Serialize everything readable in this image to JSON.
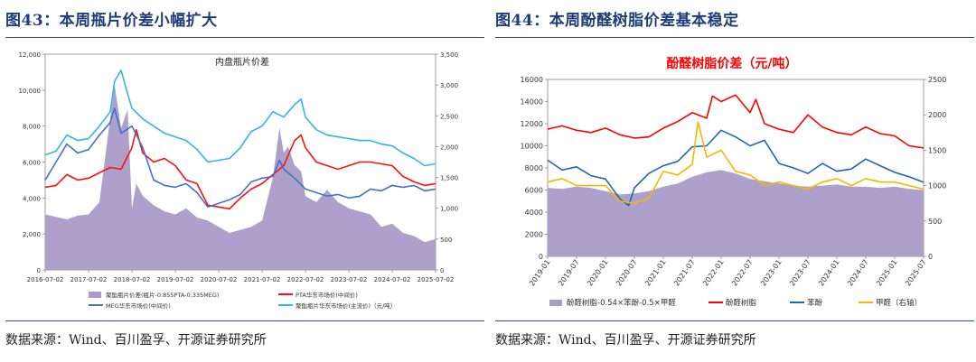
{
  "source_text": "数据来源：Wind、百川盈孚、开源证券研究所",
  "left": {
    "fig_title": "图43：本周瓶片价差小幅扩大",
    "colors": {
      "area": "#a99bc7",
      "pta": "#ff1010",
      "meg": "#4472c4",
      "bottle": "#33b5e5"
    },
    "chart_data": {
      "type": "line",
      "title": "内盘瓶片价差",
      "x_ticks": [
        "2016-07-02",
        "2017-07-02",
        "2018-07-02",
        "2019-07-02",
        "2020-07-02",
        "2021-07-02",
        "2022-07-02",
        "2023-07-02",
        "2024-07-02",
        "2025-07-02"
      ],
      "y_left_ticks": [
        "0",
        "2,000",
        "4,000",
        "6,000",
        "8,000",
        "10,000",
        "12,000"
      ],
      "y_left_range": [
        0,
        12000
      ],
      "y_right_ticks": [
        "0",
        "500",
        "1,000",
        "1,500",
        "2,000",
        "2,500",
        "3,000",
        "3,500"
      ],
      "y_right_range": [
        0,
        3500
      ],
      "legend": [
        "聚酯瓶片价差(瓶片-0.855PTA-0.335MEG)",
        "PTA华东市场价(中间价)",
        "MEG华东市场价(中间价)",
        "聚酯瓶片华东市场价(主流价)（元/吨）"
      ],
      "series": [
        {
          "name": "聚酯瓶片价差(瓶片-0.855PTA-0.335MEG)",
          "axis": "right",
          "kind": "area",
          "x": [
            2016.5,
            2016.75,
            2017.0,
            2017.25,
            2017.5,
            2017.75,
            2017.95,
            2018.1,
            2018.25,
            2018.4,
            2018.5,
            2018.6,
            2018.75,
            2019.0,
            2019.25,
            2019.5,
            2019.75,
            2020.0,
            2020.25,
            2020.5,
            2020.75,
            2021.0,
            2021.25,
            2021.5,
            2021.75,
            2021.9,
            2022.0,
            2022.1,
            2022.25,
            2022.4,
            2022.5,
            2022.75,
            2023.0,
            2023.25,
            2023.5,
            2023.75,
            2024.0,
            2024.25,
            2024.5,
            2024.75,
            2025.0,
            2025.25,
            2025.5
          ],
          "values": [
            900,
            860,
            820,
            880,
            900,
            1100,
            2200,
            3000,
            2300,
            2600,
            1000,
            1400,
            1200,
            1050,
            950,
            900,
            1000,
            850,
            800,
            700,
            600,
            650,
            700,
            800,
            1500,
            2300,
            1900,
            2000,
            1700,
            1600,
            1200,
            1100,
            1300,
            1100,
            1000,
            950,
            900,
            700,
            750,
            600,
            550,
            450,
            500
          ]
        },
        {
          "name": "PTA华东市场价(中间价)",
          "axis": "left",
          "kind": "line",
          "x": [
            2016.5,
            2016.75,
            2017.0,
            2017.25,
            2017.5,
            2017.75,
            2018.0,
            2018.25,
            2018.5,
            2018.6,
            2018.75,
            2019.0,
            2019.25,
            2019.5,
            2019.75,
            2020.0,
            2020.25,
            2020.5,
            2020.75,
            2021.0,
            2021.25,
            2021.5,
            2021.75,
            2022.0,
            2022.25,
            2022.4,
            2022.5,
            2022.75,
            2023.0,
            2023.25,
            2023.5,
            2023.75,
            2024.0,
            2024.25,
            2024.5,
            2024.75,
            2025.0,
            2025.25,
            2025.5
          ],
          "values": [
            4600,
            4700,
            5300,
            5000,
            5100,
            5400,
            5700,
            5600,
            6800,
            7800,
            6500,
            6000,
            6200,
            5800,
            5000,
            4800,
            3600,
            3500,
            3400,
            4000,
            4500,
            4800,
            5300,
            5800,
            7200,
            7500,
            6800,
            6000,
            5800,
            5600,
            5800,
            6000,
            6000,
            5900,
            5800,
            5200,
            4900,
            4700,
            4800
          ]
        },
        {
          "name": "MEG华东市场价(中间价)",
          "axis": "left",
          "kind": "line",
          "x": [
            2016.5,
            2016.75,
            2017.0,
            2017.25,
            2017.5,
            2017.75,
            2018.0,
            2018.1,
            2018.25,
            2018.5,
            2018.75,
            2019.0,
            2019.25,
            2019.5,
            2019.75,
            2020.0,
            2020.25,
            2020.5,
            2020.75,
            2021.0,
            2021.25,
            2021.5,
            2021.75,
            2021.9,
            2022.0,
            2022.25,
            2022.5,
            2022.75,
            2023.0,
            2023.25,
            2023.5,
            2023.75,
            2024.0,
            2024.25,
            2024.5,
            2024.75,
            2025.0,
            2025.25,
            2025.5
          ],
          "values": [
            5000,
            6000,
            7000,
            6500,
            6700,
            7500,
            8200,
            9000,
            7600,
            8000,
            6800,
            5000,
            4700,
            4600,
            4800,
            4300,
            3500,
            3700,
            3900,
            4200,
            4900,
            5100,
            5200,
            6100,
            5600,
            5100,
            4500,
            4300,
            4100,
            4200,
            4000,
            4100,
            4500,
            4400,
            4700,
            4600,
            4700,
            4400,
            4500
          ]
        },
        {
          "name": "聚酯瓶片华东市场价(主流价)（元/吨）",
          "axis": "left",
          "kind": "line",
          "x": [
            2016.5,
            2016.75,
            2017.0,
            2017.25,
            2017.5,
            2017.75,
            2018.0,
            2018.1,
            2018.25,
            2018.4,
            2018.5,
            2018.75,
            2019.0,
            2019.25,
            2019.5,
            2019.75,
            2020.0,
            2020.25,
            2020.5,
            2020.75,
            2021.0,
            2021.25,
            2021.5,
            2021.75,
            2022.0,
            2022.25,
            2022.4,
            2022.5,
            2022.75,
            2023.0,
            2023.25,
            2023.5,
            2023.75,
            2024.0,
            2024.25,
            2024.5,
            2024.75,
            2025.0,
            2025.25,
            2025.5
          ],
          "values": [
            6400,
            6600,
            7500,
            7200,
            7300,
            8000,
            8800,
            10500,
            11100,
            9800,
            9000,
            8400,
            8000,
            7600,
            7400,
            7200,
            6700,
            6000,
            6100,
            6200,
            6800,
            7700,
            8000,
            8800,
            8500,
            9200,
            9500,
            8500,
            7800,
            7500,
            7400,
            7300,
            7200,
            7200,
            7000,
            6900,
            6500,
            6200,
            5800,
            5900
          ]
        }
      ]
    }
  },
  "right": {
    "fig_title": "图44：本周酚醛树脂价差基本稳定",
    "colors": {
      "area": "#a99bc7",
      "resin": "#ff0000",
      "phenol": "#1f66b5",
      "formaldehyde": "#f5b800",
      "title": "#ff0000"
    },
    "chart_data": {
      "type": "line",
      "title": "酚醛树脂价差（元/吨）",
      "x_ticks": [
        "2019-01",
        "2019-07",
        "2020-01",
        "2020-07",
        "2021-01",
        "2021-07",
        "2022-01",
        "2022-07",
        "2023-01",
        "2023-07",
        "2024-01",
        "2024-07",
        "2025-01",
        "2025-07"
      ],
      "y_left_ticks": [
        "0",
        "2000",
        "4000",
        "6000",
        "8000",
        "10000",
        "12000",
        "14000",
        "16000"
      ],
      "y_left_range": [
        0,
        16000
      ],
      "y_right_ticks": [
        "0",
        "500",
        "1000",
        "1500",
        "2000",
        "2500"
      ],
      "y_right_range": [
        0,
        2500
      ],
      "legend": [
        "酚醛树脂-0.54×苯酚-0.5×甲醛",
        "酚醛树脂",
        "苯酚",
        "甲醛（右轴）"
      ],
      "series": [
        {
          "name": "酚醛树脂-0.54×苯酚-0.5×甲醛",
          "axis": "left",
          "kind": "area",
          "x": [
            2019.0,
            2019.25,
            2019.5,
            2019.75,
            2020.0,
            2020.25,
            2020.5,
            2020.75,
            2021.0,
            2021.25,
            2021.5,
            2021.75,
            2022.0,
            2022.25,
            2022.5,
            2022.75,
            2023.0,
            2023.25,
            2023.5,
            2023.75,
            2024.0,
            2024.25,
            2024.5,
            2024.75,
            2025.0,
            2025.25,
            2025.5
          ],
          "values": [
            6200,
            6100,
            6300,
            6200,
            5900,
            5600,
            5700,
            5900,
            6300,
            6600,
            7200,
            7600,
            7800,
            7500,
            7000,
            6800,
            6600,
            6400,
            6300,
            6400,
            6500,
            6300,
            6300,
            6200,
            6300,
            6100,
            6000
          ]
        },
        {
          "name": "酚醛树脂",
          "axis": "left",
          "kind": "line",
          "x": [
            2019.0,
            2019.25,
            2019.5,
            2019.75,
            2020.0,
            2020.25,
            2020.5,
            2020.75,
            2021.0,
            2021.25,
            2021.5,
            2021.75,
            2021.85,
            2022.0,
            2022.25,
            2022.5,
            2022.6,
            2022.75,
            2023.0,
            2023.25,
            2023.5,
            2023.75,
            2024.0,
            2024.25,
            2024.5,
            2024.75,
            2025.0,
            2025.25,
            2025.5
          ],
          "values": [
            11500,
            11800,
            11400,
            11200,
            11600,
            11000,
            10700,
            10800,
            11600,
            12200,
            13000,
            12500,
            14500,
            14000,
            14600,
            13000,
            14200,
            12000,
            11500,
            11200,
            12800,
            11700,
            11200,
            11000,
            11700,
            11100,
            10900,
            10000,
            9800
          ]
        },
        {
          "name": "苯酚",
          "axis": "left",
          "kind": "line",
          "x": [
            2019.0,
            2019.25,
            2019.5,
            2019.75,
            2020.0,
            2020.25,
            2020.4,
            2020.5,
            2020.75,
            2021.0,
            2021.25,
            2021.5,
            2021.75,
            2022.0,
            2022.25,
            2022.5,
            2022.75,
            2023.0,
            2023.25,
            2023.5,
            2023.75,
            2024.0,
            2024.25,
            2024.5,
            2024.75,
            2025.0,
            2025.25,
            2025.5
          ],
          "values": [
            8700,
            7800,
            8100,
            7300,
            7000,
            5200,
            4600,
            6200,
            7500,
            8200,
            8600,
            9900,
            10000,
            11400,
            10800,
            10000,
            10500,
            8400,
            8000,
            7500,
            8400,
            7700,
            7900,
            8800,
            8200,
            7600,
            7200,
            6700
          ]
        },
        {
          "name": "甲醛（右轴）",
          "axis": "right",
          "kind": "line",
          "x": [
            2019.0,
            2019.25,
            2019.5,
            2019.75,
            2020.0,
            2020.25,
            2020.5,
            2020.75,
            2021.0,
            2021.25,
            2021.5,
            2021.6,
            2021.75,
            2022.0,
            2022.25,
            2022.5,
            2022.75,
            2023.0,
            2023.25,
            2023.5,
            2023.75,
            2024.0,
            2024.25,
            2024.5,
            2024.75,
            2025.0,
            2025.25,
            2025.5
          ],
          "values": [
            1050,
            1100,
            1000,
            1000,
            1000,
            780,
            750,
            820,
            1200,
            1150,
            1300,
            1900,
            1400,
            1500,
            1200,
            1150,
            1000,
            1050,
            1000,
            950,
            1050,
            1100,
            1000,
            1100,
            1050,
            1050,
            1000,
            950
          ]
        }
      ]
    }
  }
}
